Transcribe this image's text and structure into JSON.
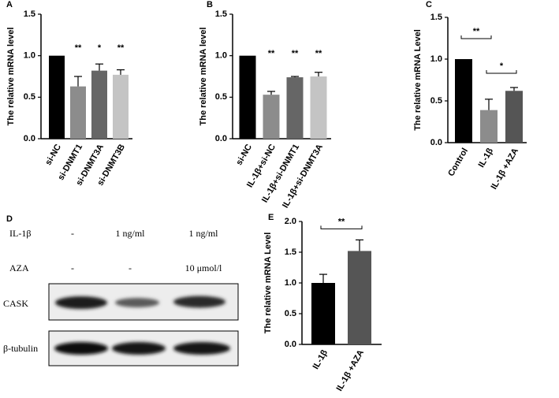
{
  "chart_data": [
    {
      "type": "bar",
      "panel": "A",
      "ylabel": "The relative mRNA level",
      "categories": [
        "si-NC",
        "si-DNMT1",
        "si-DNMT3A",
        "si-DNMT3B"
      ],
      "values": [
        1.0,
        0.63,
        0.82,
        0.77
      ],
      "errors": [
        0,
        0.12,
        0.08,
        0.06
      ],
      "colors": [
        "#000000",
        "#8c8c8c",
        "#666666",
        "#c4c4c4"
      ],
      "significance": [
        null,
        "**",
        "*",
        "**"
      ],
      "ylim": [
        0,
        1.5
      ],
      "yticks": [
        {
          "value": 0,
          "label": "0.0"
        },
        {
          "value": 0.5,
          "label": "0.5"
        },
        {
          "value": 1,
          "label": "1.0"
        },
        {
          "value": 1.5,
          "label": "1.5"
        }
      ]
    },
    {
      "type": "bar",
      "panel": "B",
      "ylabel": "The relative mRNA level",
      "categories": [
        "si-NC",
        "IL-1β+si-NC",
        "IL-1β+si-DNMT1",
        "IL-1β+si-DNMT3A"
      ],
      "values": [
        1.0,
        0.53,
        0.74,
        0.75
      ],
      "errors": [
        0,
        0.04,
        0.01,
        0.05
      ],
      "colors": [
        "#000000",
        "#8c8c8c",
        "#666666",
        "#c4c4c4"
      ],
      "significance": [
        null,
        "**",
        "**",
        "**"
      ],
      "ylim": [
        0,
        1.5
      ],
      "yticks": [
        {
          "value": 0,
          "label": "0.0"
        },
        {
          "value": 0.5,
          "label": "0.5"
        },
        {
          "value": 1,
          "label": "1.0"
        },
        {
          "value": 1.5,
          "label": "1.5"
        }
      ]
    },
    {
      "type": "bar",
      "panel": "C",
      "ylabel": "The relative mRNA Level",
      "categories": [
        "Control",
        "IL-1β",
        "IL-1β +AZA"
      ],
      "values": [
        1.0,
        0.39,
        0.62
      ],
      "errors": [
        0,
        0.13,
        0.04
      ],
      "colors": [
        "#000000",
        "#8c8c8c",
        "#555555"
      ],
      "comparisons": [
        {
          "groups": [
            "Control",
            "IL-1β"
          ],
          "label": "**"
        },
        {
          "groups": [
            "IL-1β",
            "IL-1β +AZA"
          ],
          "label": "*"
        }
      ],
      "ylim": [
        0,
        1.5
      ],
      "yticks": [
        {
          "value": 0,
          "label": "0.0"
        },
        {
          "value": 0.5,
          "label": "0.5"
        },
        {
          "value": 1,
          "label": "1.0"
        },
        {
          "value": 1.5,
          "label": "1.5"
        }
      ]
    },
    {
      "type": "bar",
      "panel": "E",
      "ylabel": "The relative mRNA Level",
      "categories": [
        "IL-1β",
        "IL-1β +AZA"
      ],
      "values": [
        1.0,
        1.52
      ],
      "errors": [
        0.14,
        0.18
      ],
      "colors": [
        "#000000",
        "#555555"
      ],
      "comparisons": [
        {
          "groups": [
            "IL-1β",
            "IL-1β +AZA"
          ],
          "label": "**"
        }
      ],
      "ylim": [
        0,
        2
      ],
      "yticks": [
        {
          "value": 0,
          "label": "0.0"
        },
        {
          "value": 0.5,
          "label": "0.5"
        },
        {
          "value": 1,
          "label": "1.0"
        },
        {
          "value": 1.5,
          "label": "1.5"
        },
        {
          "value": 2,
          "label": "2.0"
        }
      ]
    }
  ],
  "blot": {
    "panel": "D",
    "treatments": [
      {
        "name": "IL-1β",
        "lanes": [
          "-",
          "1 ng/ml",
          "1 ng/ml"
        ]
      },
      {
        "name": "AZA",
        "lanes": [
          "-",
          "-",
          "10 μmol/l"
        ]
      }
    ],
    "proteins": [
      "CASK",
      "β-tubulin"
    ]
  }
}
